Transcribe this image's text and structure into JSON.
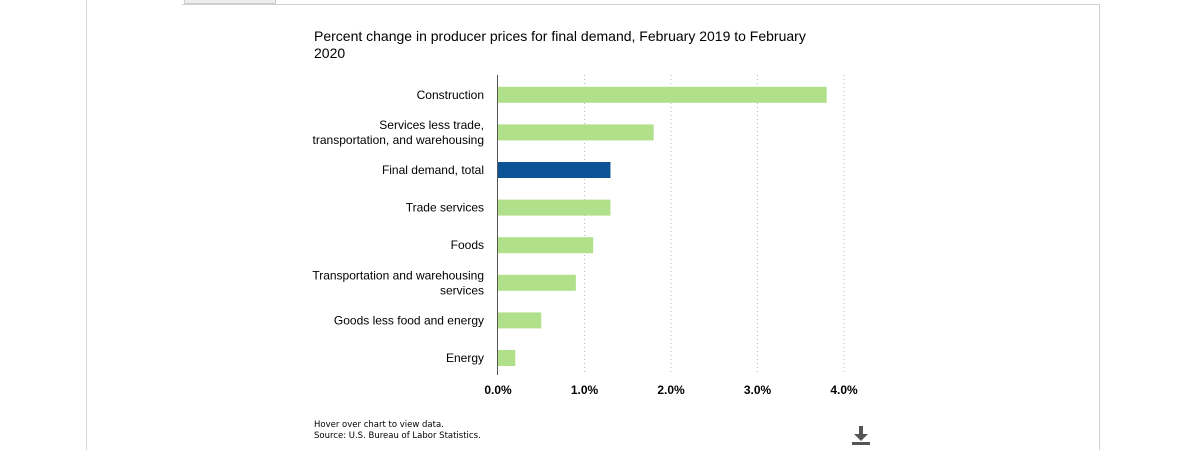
{
  "chart": {
    "title": "Percent change in producer prices for final demand, February 2019 to February 2020",
    "hover_note": "Hover over chart to view data.",
    "source_note": "Source: U.S. Bureau of Labor Statistics."
  },
  "colors": {
    "bar_default": "#b1e08b",
    "bar_highlight": "#0b5394",
    "grid": "#b8b8b8",
    "axis": "#555555"
  },
  "icons": {
    "download": "download-icon"
  },
  "chart_data": {
    "type": "bar",
    "orientation": "horizontal",
    "title": "Percent change in producer prices for final demand, February 2019 to February 2020",
    "categories": [
      [
        "Construction"
      ],
      [
        "Services less trade,",
        "transportation, and warehousing"
      ],
      [
        "Final demand, total"
      ],
      [
        "Trade services"
      ],
      [
        "Foods"
      ],
      [
        "Transportation and warehousing",
        "services"
      ],
      [
        "Goods less food and energy"
      ],
      [
        "Energy"
      ]
    ],
    "values": [
      3.8,
      1.8,
      1.3,
      1.3,
      1.1,
      0.9,
      0.5,
      0.2
    ],
    "highlight_index": 2,
    "xlim": [
      0,
      4
    ],
    "xticks": [
      0,
      1,
      2,
      3,
      4
    ],
    "xtick_labels": [
      "0.0%",
      "1.0%",
      "2.0%",
      "3.0%",
      "4.0%"
    ],
    "grid": true,
    "legend": false
  }
}
